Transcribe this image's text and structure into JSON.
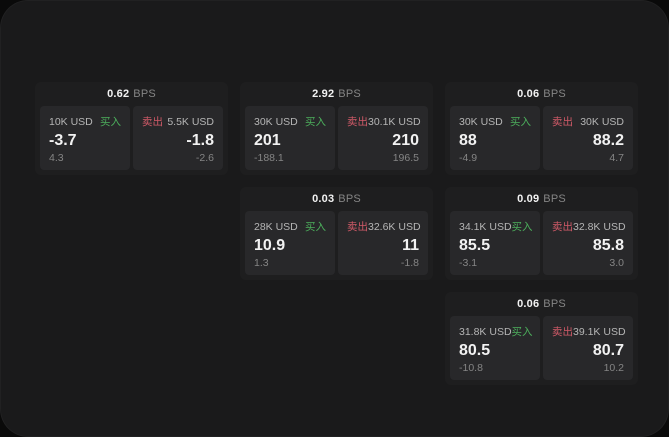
{
  "labels": {
    "bps_unit": "BPS",
    "buy": "买入",
    "sell": "卖出"
  },
  "colors": {
    "bg-outer": "#0a0a0a",
    "bg-panel": "#1a1a1b",
    "bg-card": "#1e1e1f",
    "bg-pane": "#28282a",
    "buy": "#4caf5c",
    "sell": "#d15a68"
  },
  "cards": [
    {
      "bps": "0.62",
      "buy": {
        "amount": "10K USD",
        "value": "-3.7",
        "sub": "4.3"
      },
      "sell": {
        "amount": "5.5K USD",
        "value": "-1.8",
        "sub": "-2.6"
      }
    },
    {
      "bps": "2.92",
      "buy": {
        "amount": "30K USD",
        "value": "201",
        "sub": "-188.1"
      },
      "sell": {
        "amount": "30.1K USD",
        "value": "210",
        "sub": "196.5"
      }
    },
    {
      "bps": "0.06",
      "buy": {
        "amount": "30K USD",
        "value": "88",
        "sub": "-4.9"
      },
      "sell": {
        "amount": "30K USD",
        "value": "88.2",
        "sub": "4.7"
      }
    },
    {
      "bps": "0.03",
      "buy": {
        "amount": "28K USD",
        "value": "10.9",
        "sub": "1.3"
      },
      "sell": {
        "amount": "32.6K USD",
        "value": "11",
        "sub": "-1.8"
      }
    },
    {
      "bps": "0.09",
      "buy": {
        "amount": "34.1K USD",
        "value": "85.5",
        "sub": "-3.1"
      },
      "sell": {
        "amount": "32.8K USD",
        "value": "85.8",
        "sub": "3.0"
      }
    },
    {
      "bps": "0.06",
      "buy": {
        "amount": "31.8K USD",
        "value": "80.5",
        "sub": "-10.8"
      },
      "sell": {
        "amount": "39.1K USD",
        "value": "80.7",
        "sub": "10.2"
      }
    }
  ]
}
